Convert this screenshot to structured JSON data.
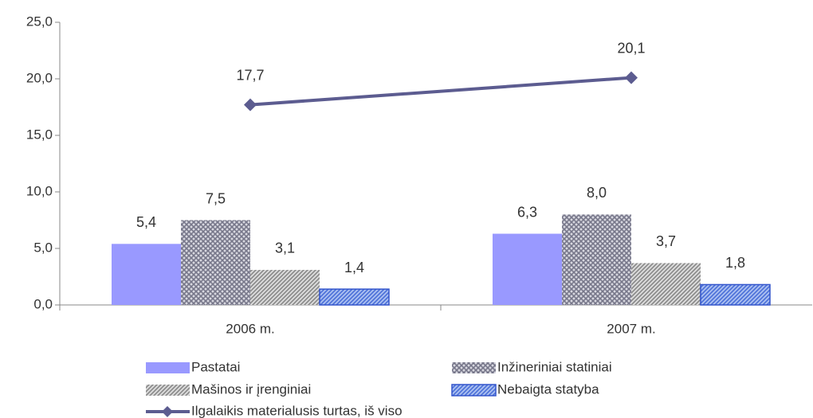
{
  "chart_data": {
    "type": "bar",
    "categories": [
      "2006 m.",
      "2007 m."
    ],
    "ylim": [
      0,
      25
    ],
    "yticks": [
      {
        "value": 0,
        "label": "0,0"
      },
      {
        "value": 5,
        "label": "5,0"
      },
      {
        "value": 10,
        "label": "10,0"
      },
      {
        "value": 15,
        "label": "15,0"
      },
      {
        "value": 20,
        "label": "20,0"
      },
      {
        "value": 25,
        "label": "25,0"
      }
    ],
    "series": [
      {
        "name": "Pastatai",
        "color": "#9999ff",
        "pattern": "solid",
        "values": [
          5.4,
          6.3
        ],
        "value_labels": [
          "5,4",
          "6,3"
        ]
      },
      {
        "name": "Inžineriniai statiniai",
        "color": "#8c8ca0",
        "pattern": "crosshatch",
        "values": [
          7.5,
          8.0
        ],
        "value_labels": [
          "7,5",
          "8,0"
        ]
      },
      {
        "name": "Mašinos ir įrenginiai",
        "color": "#9a9a9a",
        "pattern": "diagonal",
        "values": [
          3.1,
          3.7
        ],
        "value_labels": [
          "3,1",
          "3,7"
        ]
      },
      {
        "name": "Nebaigta statyba",
        "color": "#6f8fe8",
        "pattern": "diagonal",
        "values": [
          1.4,
          1.8
        ],
        "value_labels": [
          "1,4",
          "1,8"
        ]
      },
      {
        "name": "Ilgalaikis materialusis turtas, iš viso",
        "type": "line",
        "color": "#5c5c90",
        "values": [
          17.7,
          20.1
        ],
        "value_labels": [
          "17,7",
          "20,1"
        ]
      }
    ]
  }
}
